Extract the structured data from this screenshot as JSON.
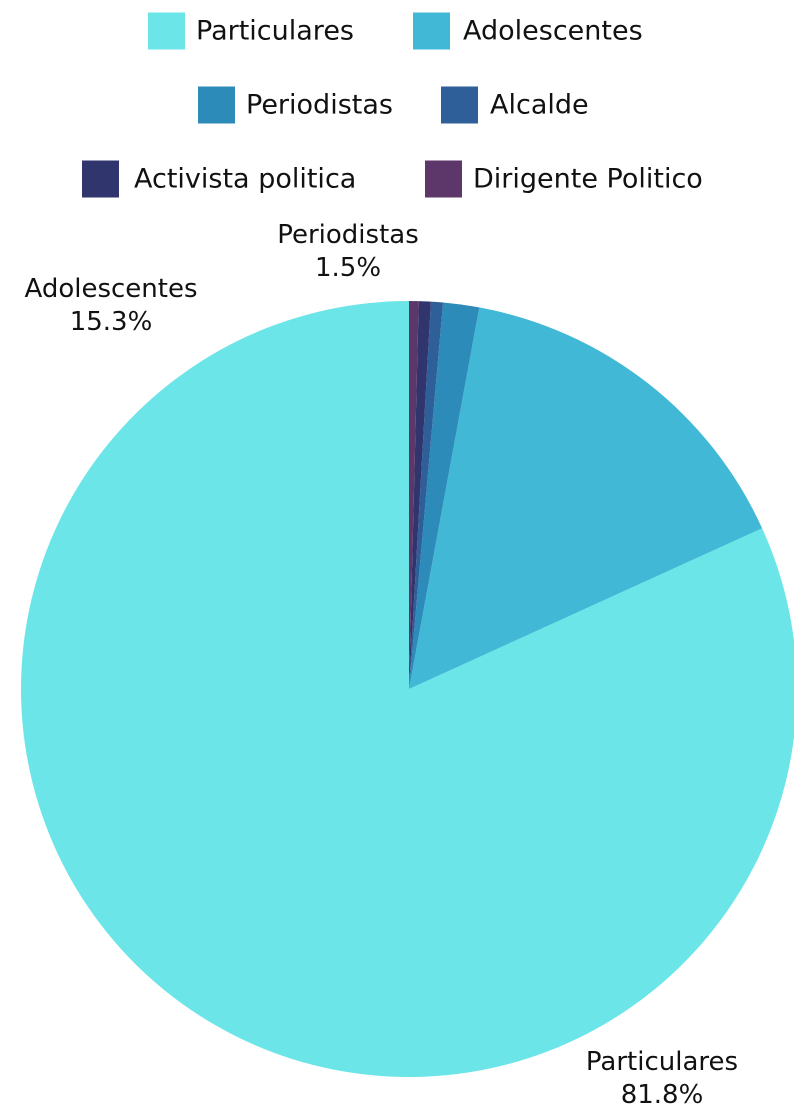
{
  "chart_data": {
    "type": "pie",
    "slices": [
      {
        "label": "Particulares",
        "value": 81.8,
        "color": "#6ce5e8",
        "value_label": "81.8%"
      },
      {
        "label": "Adolescentes",
        "value": 15.3,
        "color": "#41b8d5",
        "value_label": "15.3%"
      },
      {
        "label": "Periodistas",
        "value": 1.5,
        "color": "#2d8bba",
        "value_label": "1.5%"
      },
      {
        "label": "Alcalde",
        "value": 0.5,
        "color": "#2f5f98",
        "value_label": ""
      },
      {
        "label": "Activista politica",
        "value": 0.5,
        "color": "#31356e",
        "value_label": ""
      },
      {
        "label": "Dirigente Politico",
        "value": 0.4,
        "color": "#5e376a",
        "value_label": ""
      }
    ],
    "legend_position": "top"
  }
}
